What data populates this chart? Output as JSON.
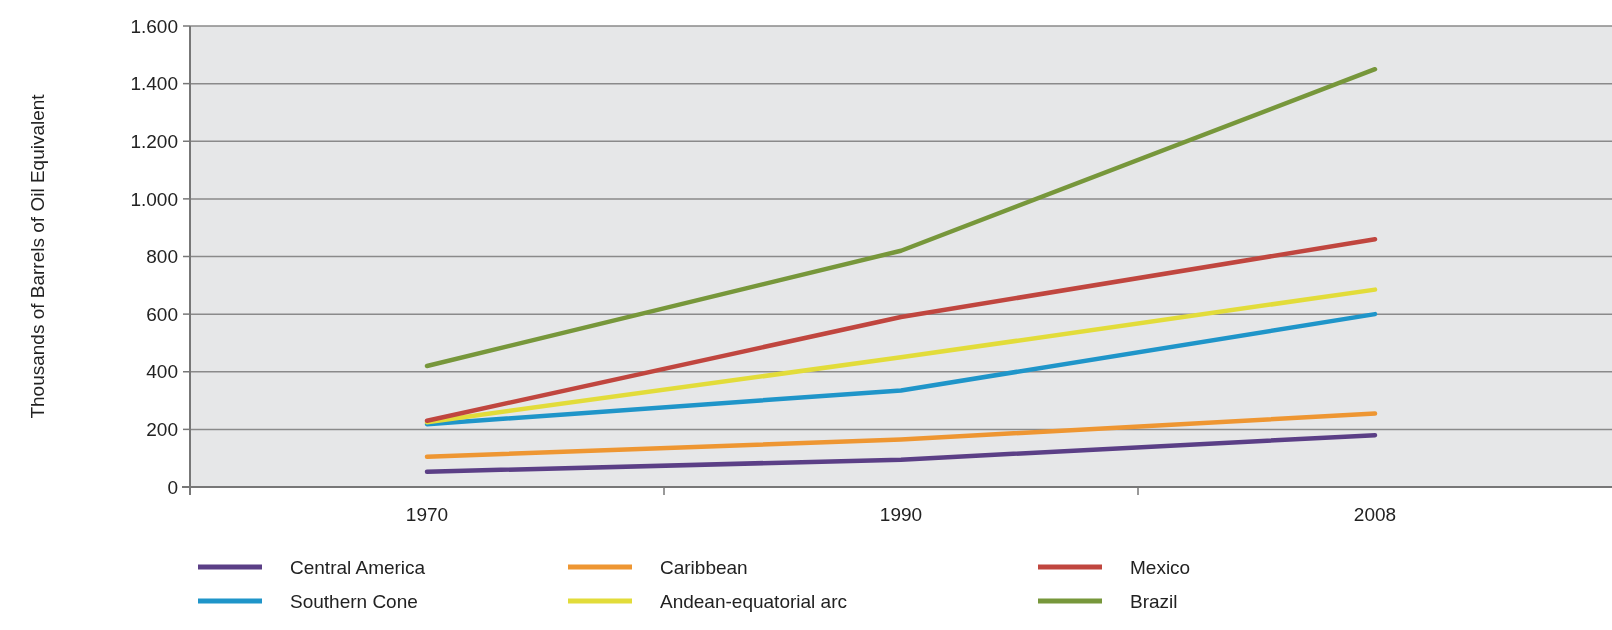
{
  "chart_data": {
    "type": "line",
    "ylabel": "Thousands of Barrels of Oil Equivalent",
    "categories": [
      "1970",
      "1990",
      "2008"
    ],
    "series": [
      {
        "name": "Central America",
        "color": "#5b3f86",
        "values": [
          53,
          95,
          180
        ]
      },
      {
        "name": "Southern Cone",
        "color": "#1f95c9",
        "values": [
          218,
          335,
          600
        ]
      },
      {
        "name": "Caribbean",
        "color": "#ee9632",
        "values": [
          105,
          165,
          255
        ]
      },
      {
        "name": "Andean-equatorial arc",
        "color": "#e2dc3a",
        "values": [
          225,
          450,
          685
        ]
      },
      {
        "name": "Mexico",
        "color": "#c0463f",
        "values": [
          230,
          590,
          860
        ]
      },
      {
        "name": "Brazil",
        "color": "#77973b",
        "values": [
          420,
          820,
          1450
        ]
      }
    ],
    "ylim": [
      0,
      1600
    ],
    "yticks": [
      0,
      200,
      400,
      600,
      800,
      {
        "value": 1000,
        "label": "1.000"
      },
      {
        "value": 1200,
        "label": "1.200"
      },
      {
        "value": 1400,
        "label": "1.400"
      },
      {
        "value": 1600,
        "label": "1.600"
      }
    ],
    "grid": "y",
    "legend": "bottom",
    "marker": "none",
    "line_style": "solid"
  }
}
